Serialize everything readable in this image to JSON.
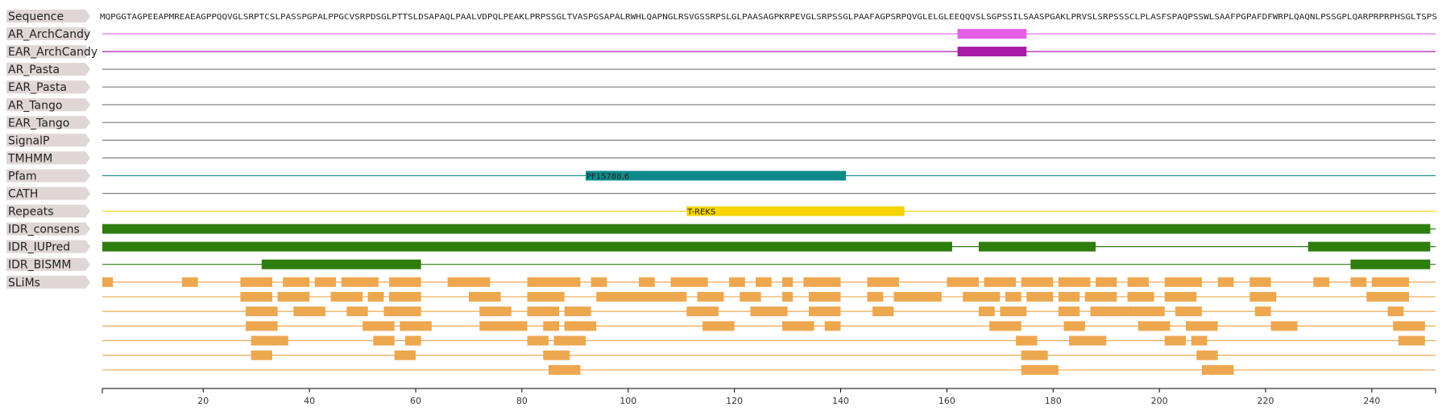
{
  "sequence": {
    "label": "Sequence",
    "text": "MQPGGTAGPEEAPMREAEAGPPQQVGLSRPTCSLPASSPGPALPPGCVSRPDSGLPTTSLDSAPAQLPAALVDPQLPEAKLPRPSSGLTVASPGSAPALRWHLQAPNGLRSVGSSRPSLGLPAASAGPKRPEVGLSRPSSGLPAAFAGPSRPQVGLELGLEEQQVSLSGPSSILSAASPGAKLPRVSLSRPSSSCLPLASFSPAQPSSWLSAAFPGPAFDFWRPLQAQNLPSSGPLQARPRPRPHSGLTSPS"
  },
  "axis": {
    "min": 1,
    "max": 252,
    "ticks": [
      20,
      40,
      60,
      80,
      100,
      120,
      140,
      160,
      180,
      200,
      220,
      240
    ]
  },
  "colors": {
    "label_bg": "#e0d6d6",
    "neutral_line": "#808080",
    "slim": "#eda74f",
    "idr": "#2e7d0f"
  },
  "tracks": [
    {
      "label": "AR_ArchCandy",
      "line_color": "#e45fe4",
      "features": [
        {
          "start": 162,
          "end": 175,
          "color": "#e45fe4",
          "label": ""
        }
      ]
    },
    {
      "label": "EAR_ArchCandy",
      "line_color": "#a81aa8",
      "features": [
        {
          "start": 162,
          "end": 175,
          "color": "#a81aa8",
          "label": ""
        }
      ]
    },
    {
      "label": "AR_Pasta",
      "line_color": "#808080",
      "features": []
    },
    {
      "label": "EAR_Pasta",
      "line_color": "#808080",
      "features": []
    },
    {
      "label": "AR_Tango",
      "line_color": "#808080",
      "features": []
    },
    {
      "label": "EAR_Tango",
      "line_color": "#808080",
      "features": []
    },
    {
      "label": "SignalP",
      "line_color": "#808080",
      "features": []
    },
    {
      "label": "TMHMM",
      "line_color": "#808080",
      "features": []
    },
    {
      "label": "Pfam",
      "line_color": "#0f8a8a",
      "features": [
        {
          "start": 92,
          "end": 141,
          "color": "#0f8a8a",
          "label": "PF15788.6"
        }
      ]
    },
    {
      "label": "CATH",
      "line_color": "#808080",
      "features": []
    },
    {
      "label": "Repeats",
      "line_color": "#f5d400",
      "features": [
        {
          "start": 111,
          "end": 152,
          "color": "#f5d400",
          "label": "T-REKS"
        }
      ]
    },
    {
      "label": "IDR_consens",
      "line_color": "#2e7d0f",
      "features": [
        {
          "start": 1,
          "end": 251,
          "color": "#2e7d0f",
          "label": ""
        }
      ]
    },
    {
      "label": "IDR_IUPred",
      "line_color": "#2e7d0f",
      "features": [
        {
          "start": 1,
          "end": 161,
          "color": "#2e7d0f",
          "label": ""
        },
        {
          "start": 166,
          "end": 188,
          "color": "#2e7d0f",
          "label": ""
        },
        {
          "start": 228,
          "end": 251,
          "color": "#2e7d0f",
          "label": ""
        }
      ]
    },
    {
      "label": "IDR_BISMM",
      "line_color": "#2e7d0f",
      "features": [
        {
          "start": 31,
          "end": 61,
          "color": "#2e7d0f",
          "label": ""
        },
        {
          "start": 236,
          "end": 251,
          "color": "#2e7d0f",
          "label": ""
        }
      ]
    }
  ],
  "slims": {
    "label": "SLiMs",
    "rows": [
      [
        [
          1,
          3
        ],
        [
          16,
          19
        ],
        [
          27,
          33
        ],
        [
          35,
          40
        ],
        [
          41,
          45
        ],
        [
          46,
          53
        ],
        [
          55,
          61
        ],
        [
          66,
          74
        ],
        [
          81,
          91
        ],
        [
          93,
          96
        ],
        [
          102,
          105
        ],
        [
          108,
          115
        ],
        [
          119,
          122
        ],
        [
          124,
          127
        ],
        [
          129,
          131
        ],
        [
          133,
          140
        ],
        [
          145,
          151
        ],
        [
          160,
          166
        ],
        [
          167,
          173
        ],
        [
          174,
          180
        ],
        [
          181,
          187
        ],
        [
          188,
          192
        ],
        [
          194,
          198
        ],
        [
          201,
          208
        ],
        [
          211,
          214
        ],
        [
          217,
          221
        ],
        [
          229,
          232
        ],
        [
          236,
          239
        ],
        [
          240,
          247
        ]
      ],
      [
        [
          27,
          33
        ],
        [
          34,
          40
        ],
        [
          44,
          50
        ],
        [
          51,
          54
        ],
        [
          55,
          61
        ],
        [
          70,
          76
        ],
        [
          81,
          88
        ],
        [
          94,
          111
        ],
        [
          113,
          118
        ],
        [
          121,
          125
        ],
        [
          129,
          131
        ],
        [
          134,
          140
        ],
        [
          145,
          148
        ],
        [
          150,
          159
        ],
        [
          163,
          170
        ],
        [
          171,
          174
        ],
        [
          175,
          180
        ],
        [
          181,
          185
        ],
        [
          186,
          192
        ],
        [
          194,
          199
        ],
        [
          201,
          207
        ],
        [
          217,
          222
        ],
        [
          239,
          247
        ]
      ],
      [
        [
          28,
          34
        ],
        [
          37,
          43
        ],
        [
          47,
          51
        ],
        [
          54,
          61
        ],
        [
          72,
          78
        ],
        [
          81,
          87
        ],
        [
          88,
          93
        ],
        [
          111,
          117
        ],
        [
          123,
          130
        ],
        [
          134,
          140
        ],
        [
          146,
          150
        ],
        [
          166,
          169
        ],
        [
          170,
          175
        ],
        [
          181,
          185
        ],
        [
          187,
          195
        ],
        [
          195,
          201
        ],
        [
          203,
          208
        ],
        [
          218,
          221
        ],
        [
          243,
          246
        ]
      ],
      [
        [
          28,
          34
        ],
        [
          50,
          56
        ],
        [
          57,
          63
        ],
        [
          72,
          81
        ],
        [
          84,
          87
        ],
        [
          88,
          94
        ],
        [
          114,
          120
        ],
        [
          129,
          135
        ],
        [
          137,
          140
        ],
        [
          168,
          174
        ],
        [
          182,
          186
        ],
        [
          196,
          202
        ],
        [
          205,
          211
        ],
        [
          221,
          226
        ],
        [
          244,
          250
        ]
      ],
      [
        [
          29,
          36
        ],
        [
          52,
          56
        ],
        [
          58,
          61
        ],
        [
          81,
          85
        ],
        [
          86,
          92
        ],
        [
          173,
          177
        ],
        [
          183,
          190
        ],
        [
          201,
          205
        ],
        [
          206,
          209
        ],
        [
          245,
          250
        ]
      ],
      [
        [
          29,
          33
        ],
        [
          56,
          60
        ],
        [
          84,
          89
        ],
        [
          174,
          179
        ],
        [
          207,
          211
        ]
      ],
      [
        [
          85,
          91
        ],
        [
          174,
          181
        ],
        [
          208,
          214
        ]
      ]
    ]
  }
}
